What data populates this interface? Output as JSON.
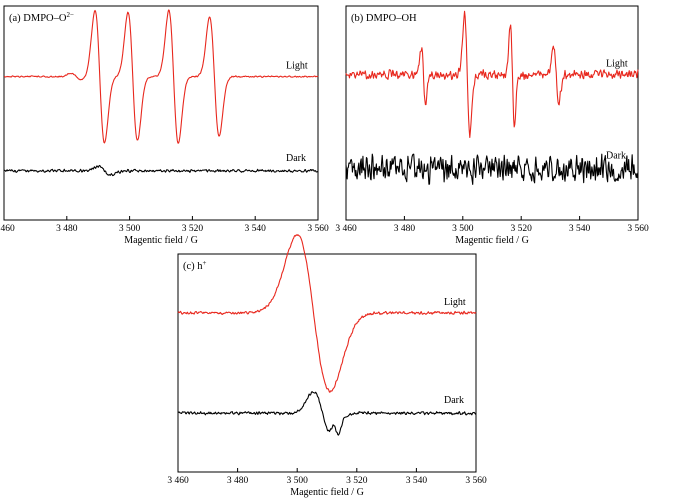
{
  "panels": [
    {
      "label": "(a) DMPO–O",
      "label_sup": "2−",
      "xlabel": "Magentic field / G",
      "ticks": [
        "3 460",
        "3 480",
        "3 500",
        "3 520",
        "3 540",
        "3 560"
      ],
      "series_labels": [
        "Light",
        "Dark"
      ]
    },
    {
      "label": "(b) DMPO–OH",
      "label_sup": "",
      "xlabel": "Magentic field / G",
      "ticks": [
        "3 460",
        "3 480",
        "3 500",
        "3 520",
        "3 540",
        "3 560"
      ],
      "series_labels": [
        "Light",
        "Dark"
      ]
    },
    {
      "label": "(c) h",
      "label_sup": "+",
      "xlabel": "Magentic field / G",
      "ticks": [
        "3 460",
        "3 480",
        "3 500",
        "3 520",
        "3 540",
        "3 560"
      ],
      "series_labels": [
        "Light",
        "Dark"
      ]
    }
  ],
  "chart_data": [
    {
      "type": "line",
      "title": "(a) DMPO–O2−",
      "xlabel": "Magentic field / G",
      "ylabel": "",
      "xlim": [
        3460,
        3560
      ],
      "xticks": [
        3460,
        3480,
        3500,
        3520,
        3540,
        3560
      ],
      "y_axis_ticks": false,
      "series": [
        {
          "name": "Light",
          "color": "#e8281e",
          "offset": 0.33,
          "noise": 0.004,
          "peaks": [
            [
              3483,
              0.015,
              1.6
            ],
            [
              3490.5,
              0.31,
              1.5
            ],
            [
              3501,
              0.3,
              1.5
            ],
            [
              3514,
              0.31,
              1.5
            ],
            [
              3527,
              0.28,
              1.5
            ]
          ]
        },
        {
          "name": "Dark",
          "color": "#000000",
          "offset": 0.77,
          "noise": 0.008,
          "peaks": [
            [
              3492,
              0.02,
              2.0
            ]
          ]
        }
      ]
    },
    {
      "type": "line",
      "title": "(b) DMPO–OH",
      "xlabel": "Magentic field / G",
      "ylabel": "",
      "xlim": [
        3460,
        3560
      ],
      "xticks": [
        3460,
        3480,
        3500,
        3520,
        3540,
        3560
      ],
      "y_axis_ticks": false,
      "series": [
        {
          "name": "Light",
          "color": "#e8281e",
          "offset": 0.32,
          "noise": 0.025,
          "peaks": [
            [
              3486.5,
              0.13,
              0.7
            ],
            [
              3501.5,
              0.28,
              0.9
            ],
            [
              3517,
              0.23,
              0.7
            ],
            [
              3532,
              0.13,
              0.9
            ]
          ]
        },
        {
          "name": "Dark",
          "color": "#000000",
          "offset": 0.76,
          "noise": 0.075,
          "peaks": []
        }
      ]
    },
    {
      "type": "line",
      "title": "(c) h+",
      "xlabel": "Magentic field / G",
      "ylabel": "",
      "xlim": [
        3460,
        3560
      ],
      "xticks": [
        3460,
        3480,
        3500,
        3520,
        3540,
        3560
      ],
      "y_axis_ticks": false,
      "series": [
        {
          "name": "Light",
          "color": "#e8281e",
          "offset": 0.27,
          "noise": 0.008,
          "peaks": [
            [
              3505.5,
              0.36,
              5.5
            ]
          ]
        },
        {
          "name": "Dark",
          "color": "#000000",
          "offset": 0.73,
          "noise": 0.008,
          "peaks": [
            [
              3508.5,
              0.1,
              3.0
            ],
            [
              3513,
              0.04,
              1.0
            ]
          ]
        }
      ]
    }
  ]
}
